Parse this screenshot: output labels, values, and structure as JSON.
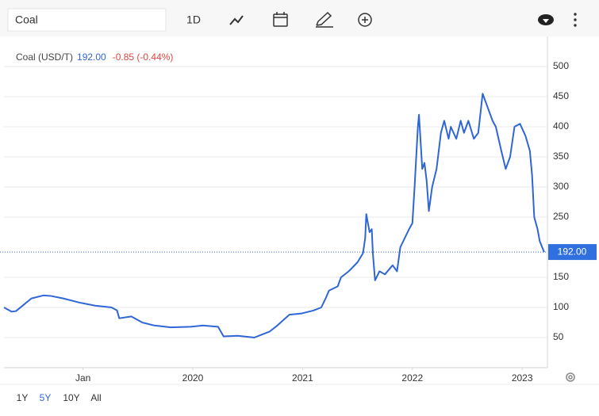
{
  "toolbar": {
    "search": "Coal",
    "interval": "1D"
  },
  "ranges": [
    "1Y",
    "5Y",
    "10Y",
    "All"
  ],
  "active_range": 1,
  "chart_data": {
    "type": "line",
    "change": "-0.85 (-0.44%)",
    "last_price": {
      "value": 192,
      "label": "192.00"
    },
    "x": [
      2018.28,
      2018.35,
      2018.39,
      2018.53,
      2018.64,
      2018.71,
      2018.82,
      2018.97,
      2019.11,
      2019.26,
      2019.31,
      2019.33,
      2019.44,
      2019.54,
      2019.65,
      2019.8,
      2019.98,
      2020.09,
      2020.23,
      2020.28,
      2020.41,
      2020.56,
      2020.63,
      2020.7,
      2020.77,
      2020.83,
      2020.88,
      2020.99,
      2021.1,
      2021.17,
      2021.21,
      2021.24,
      2021.32,
      2021.35,
      2021.42,
      2021.5,
      2021.55,
      2021.57,
      2021.58,
      2021.61,
      2021.63,
      2021.64,
      2021.66,
      2021.7,
      2021.75,
      2021.82,
      2021.86,
      2021.89,
      2021.93,
      2021.97,
      2022.0,
      2022.02,
      2022.05,
      2022.06,
      2022.09,
      2022.11,
      2022.13,
      2022.15,
      2022.18,
      2022.22,
      2022.26,
      2022.29,
      2022.33,
      2022.35,
      2022.4,
      2022.44,
      2022.47,
      2022.51,
      2022.56,
      2022.6,
      2022.64,
      2022.69,
      2022.73,
      2022.76,
      2022.81,
      2022.85,
      2022.89,
      2022.93,
      2022.98,
      2023.03,
      2023.07,
      2023.09,
      2023.11,
      2023.14,
      2023.16,
      2023.2
    ],
    "series": [
      {
        "name": "Coal (USD/T)",
        "color": "#2f66d6",
        "value_label": "192.00",
        "values": [
          100,
          93,
          94,
          115,
          120,
          119,
          115,
          108,
          103,
          100,
          95,
          82,
          85,
          75,
          70,
          67,
          68,
          70,
          68,
          52,
          53,
          50,
          55,
          60,
          70,
          80,
          88,
          90,
          95,
          100,
          115,
          128,
          135,
          150,
          160,
          175,
          190,
          215,
          255,
          225,
          230,
          190,
          145,
          160,
          155,
          170,
          160,
          200,
          215,
          230,
          240,
          300,
          400,
          420,
          330,
          340,
          310,
          260,
          300,
          330,
          390,
          410,
          380,
          400,
          380,
          410,
          390,
          410,
          380,
          390,
          455,
          430,
          410,
          400,
          360,
          330,
          350,
          400,
          405,
          385,
          360,
          320,
          250,
          230,
          210,
          192
        ]
      }
    ],
    "xlim": [
      2018.28,
      2023.23
    ],
    "xticks": [
      {
        "value": 2019,
        "label": "Jan"
      },
      2020,
      2021,
      2022,
      2023
    ],
    "ylim": [
      0,
      550
    ],
    "yticks": [
      50,
      100,
      150,
      250,
      300,
      350,
      400,
      450,
      500
    ],
    "grid": true
  }
}
